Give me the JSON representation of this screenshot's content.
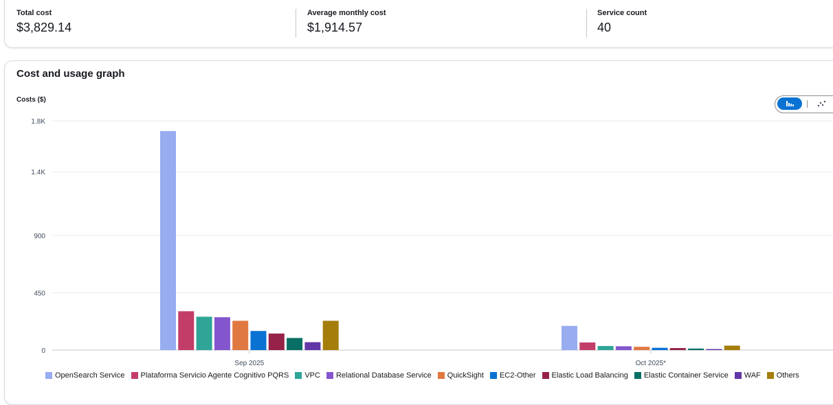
{
  "summary": {
    "total_cost_label": "Total cost",
    "total_cost_value": "$3,829.14",
    "avg_monthly_label": "Average monthly cost",
    "avg_monthly_value": "$1,914.57",
    "service_count_label": "Service count",
    "service_count_value": "40"
  },
  "panel": {
    "title": "Cost and usage graph",
    "bar_view_icon": "bar-chart-icon",
    "line_view_icon": "line-chart-icon"
  },
  "chart_data": {
    "type": "bar",
    "title": "Cost and usage graph",
    "ylabel": "Costs ($)",
    "xlabel": "",
    "categories": [
      "Sep 2025",
      "Oct 2025*"
    ],
    "y_ticks": [
      0,
      450,
      900,
      1400,
      1800
    ],
    "y_tick_labels": [
      "0",
      "450",
      "900",
      "1.4K",
      "1.8K"
    ],
    "ylim": [
      0,
      1800
    ],
    "grid": true,
    "legend_position": "bottom",
    "series": [
      {
        "name": "OpenSearch Service",
        "color": "#98acf0",
        "values": [
          1720,
          190
        ]
      },
      {
        "name": "Plataforma Servicio Agente Cognitivo PQRS",
        "color": "#c33d69",
        "values": [
          305,
          60
        ]
      },
      {
        "name": "VPC",
        "color": "#2ea597",
        "values": [
          262,
          32
        ]
      },
      {
        "name": "Relational Database Service",
        "color": "#8456ce",
        "values": [
          258,
          30
        ]
      },
      {
        "name": "QuickSight",
        "color": "#e07941",
        "values": [
          230,
          26
        ]
      },
      {
        "name": "EC2-Other",
        "color": "#0972d3",
        "values": [
          150,
          18
        ]
      },
      {
        "name": "Elastic Load Balancing",
        "color": "#962249",
        "values": [
          130,
          16
        ]
      },
      {
        "name": "Elastic Container Service",
        "color": "#096f64",
        "values": [
          95,
          12
        ]
      },
      {
        "name": "WAF",
        "color": "#6237a7",
        "values": [
          62,
          8
        ]
      },
      {
        "name": "Others",
        "color": "#a47d0b",
        "values": [
          230,
          35
        ]
      }
    ]
  }
}
